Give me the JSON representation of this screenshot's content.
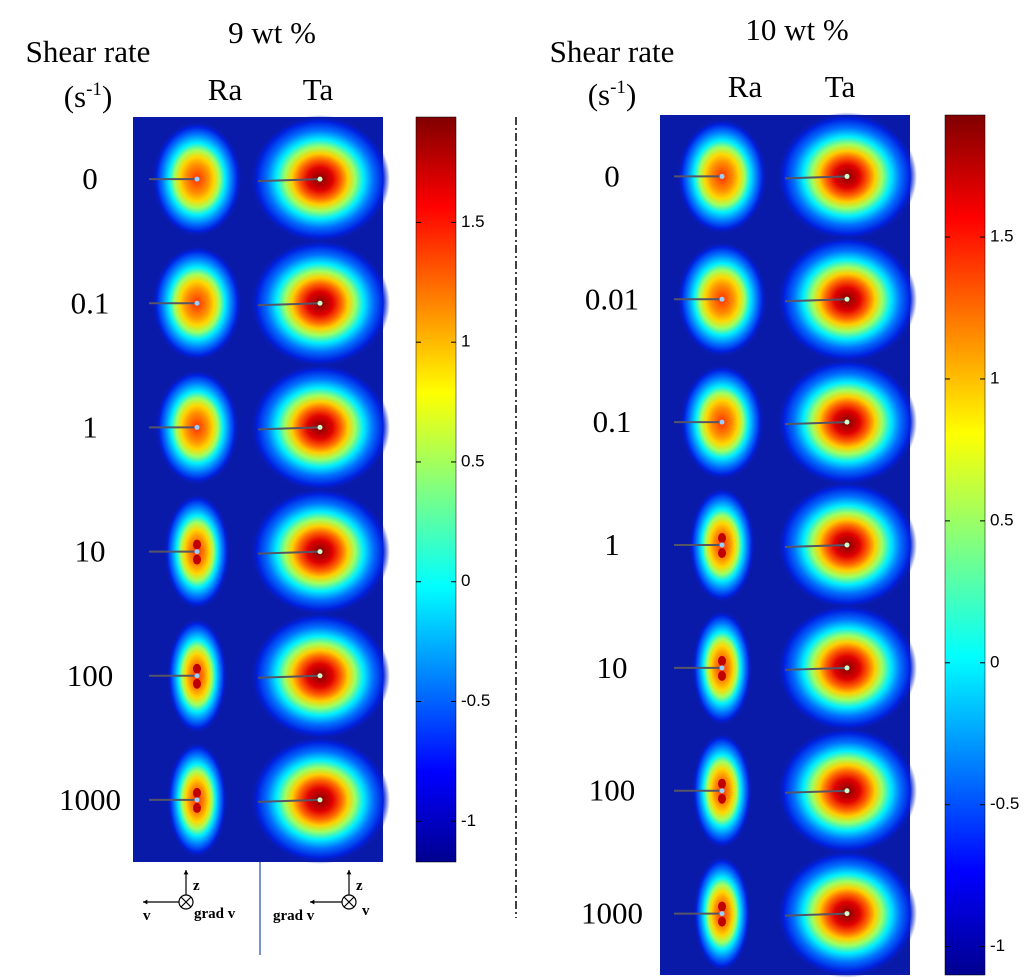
{
  "panels": [
    {
      "title": "9 wt %",
      "row_header": "Shear rate",
      "unit_base": "(s",
      "unit_exp": "-1",
      "unit_close": ")",
      "columns": [
        "Ra",
        "Ta"
      ],
      "rows": [
        "0",
        "0.1",
        "1",
        "10",
        "100",
        "1000"
      ],
      "colorbar": {
        "lim": [
          -1.17,
          1.94
        ],
        "ticks": [
          1.5,
          1,
          0.5,
          0,
          -0.5,
          -1
        ]
      }
    },
    {
      "title": "10 wt %",
      "row_header": "Shear rate",
      "unit_base": "(s",
      "unit_exp": "-1",
      "unit_close": ")",
      "columns": [
        "Ra",
        "Ta"
      ],
      "rows": [
        "0",
        "0.01",
        "0.1",
        "1",
        "10",
        "100",
        "1000"
      ],
      "colorbar": {
        "lim": [
          -1.1,
          1.93
        ],
        "ticks": [
          1.5,
          1,
          0.5,
          0,
          -0.5,
          -1
        ]
      }
    }
  ],
  "orientation": [
    {
      "up": "z",
      "left": "v",
      "center": "grad v"
    },
    {
      "up": "z",
      "left": "grad v",
      "right": "v"
    }
  ]
}
